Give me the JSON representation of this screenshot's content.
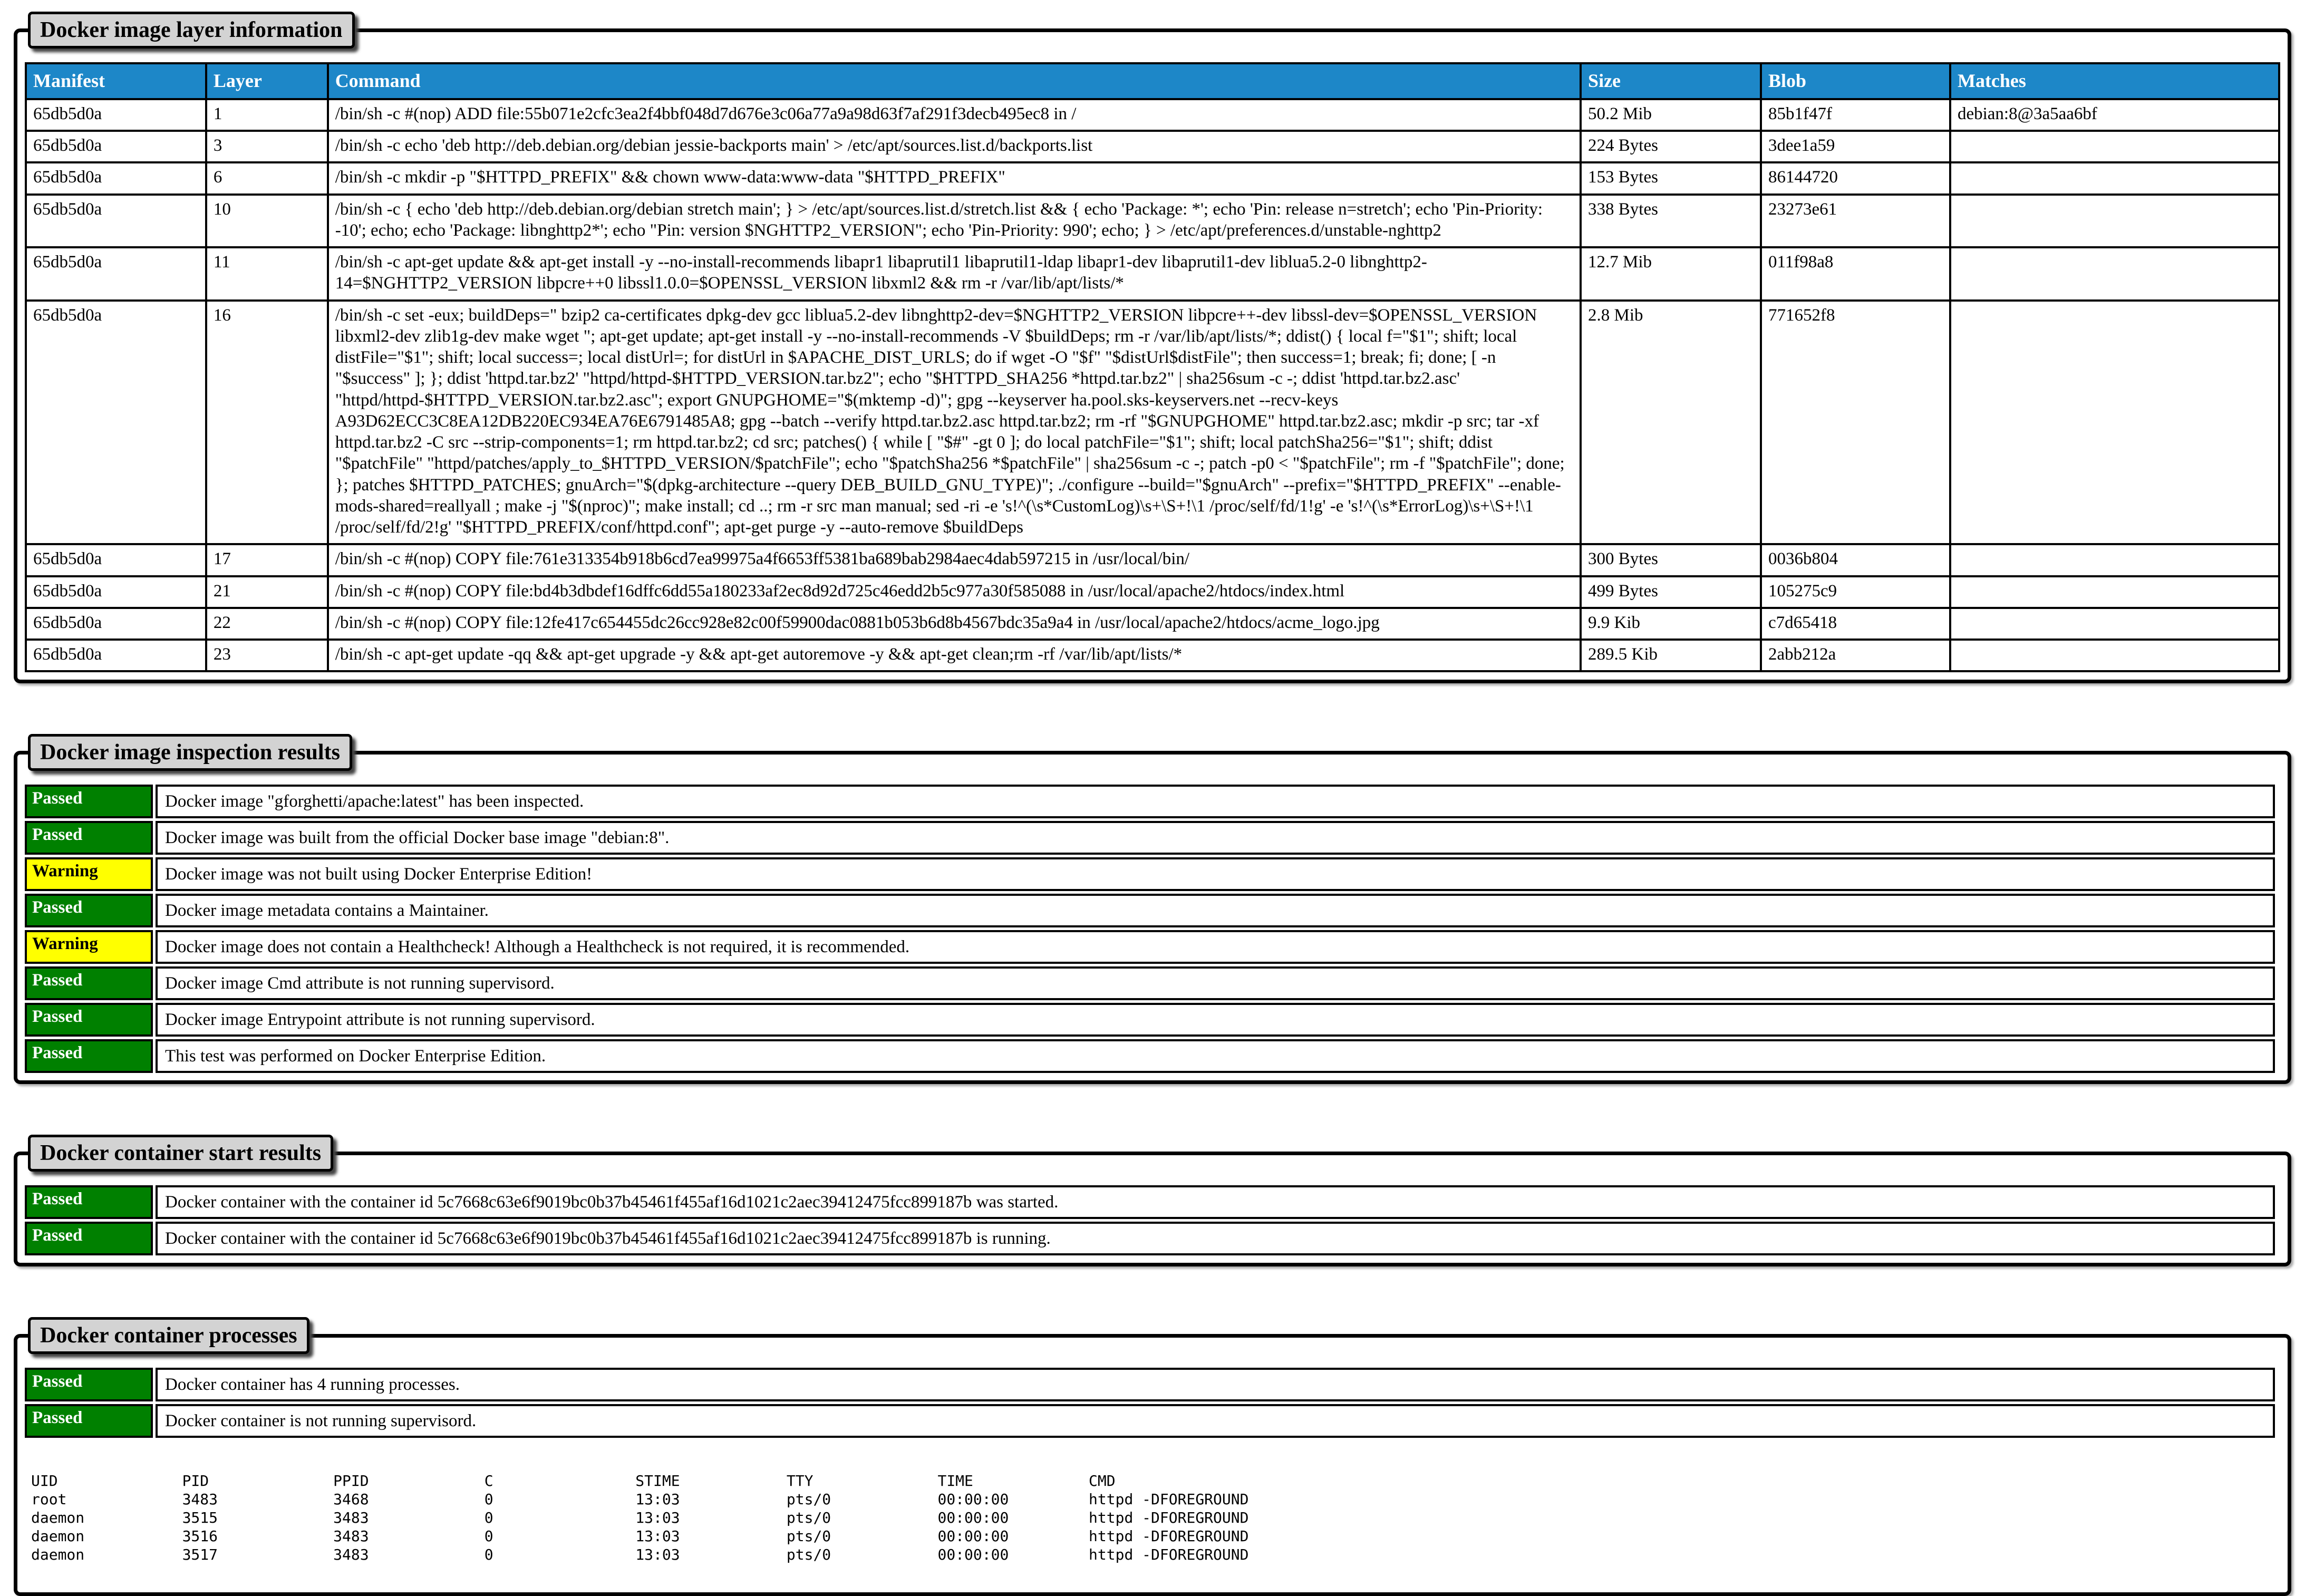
{
  "colors": {
    "header_bg": "#1d87c8",
    "passed_bg": "#008000",
    "warning_bg": "#ffff00",
    "legend_bg": "#d3d3d3"
  },
  "layer_section": {
    "legend": "Docker image layer information",
    "columns": [
      "Manifest",
      "Layer",
      "Command",
      "Size",
      "Blob",
      "Matches"
    ],
    "rows": [
      [
        "65db5d0a",
        "1",
        "/bin/sh -c #(nop) ADD file:55b071e2cfc3ea2f4bbf048d7d676e3c06a77a9a98d63f7af291f3decb495ec8 in /",
        "50.2 Mib",
        "85b1f47f",
        "debian:8@3a5aa6bf"
      ],
      [
        "65db5d0a",
        "3",
        "/bin/sh -c echo 'deb http://deb.debian.org/debian jessie-backports main' > /etc/apt/sources.list.d/backports.list",
        "224 Bytes",
        "3dee1a59",
        ""
      ],
      [
        "65db5d0a",
        "6",
        "/bin/sh -c mkdir -p \"$HTTPD_PREFIX\" && chown www-data:www-data \"$HTTPD_PREFIX\"",
        "153 Bytes",
        "86144720",
        ""
      ],
      [
        "65db5d0a",
        "10",
        "/bin/sh -c { echo 'deb http://deb.debian.org/debian stretch main'; } > /etc/apt/sources.list.d/stretch.list && { echo 'Package: *'; echo 'Pin: release n=stretch'; echo 'Pin-Priority: -10'; echo; echo 'Package: libnghttp2*'; echo \"Pin: version $NGHTTP2_VERSION\"; echo 'Pin-Priority: 990'; echo; } > /etc/apt/preferences.d/unstable-nghttp2",
        "338 Bytes",
        "23273e61",
        ""
      ],
      [
        "65db5d0a",
        "11",
        "/bin/sh -c apt-get update && apt-get install -y --no-install-recommends libapr1 libaprutil1 libaprutil1-ldap libapr1-dev libaprutil1-dev liblua5.2-0 libnghttp2-14=$NGHTTP2_VERSION libpcre++0 libssl1.0.0=$OPENSSL_VERSION libxml2 && rm -r /var/lib/apt/lists/*",
        "12.7 Mib",
        "011f98a8",
        ""
      ],
      [
        "65db5d0a",
        "16",
        "/bin/sh -c set -eux; buildDeps=\" bzip2 ca-certificates dpkg-dev gcc liblua5.2-dev libnghttp2-dev=$NGHTTP2_VERSION libpcre++-dev libssl-dev=$OPENSSL_VERSION libxml2-dev zlib1g-dev make wget \"; apt-get update; apt-get install -y --no-install-recommends -V $buildDeps; rm -r /var/lib/apt/lists/*; ddist() { local f=\"$1\"; shift; local distFile=\"$1\"; shift; local success=; local distUrl=; for distUrl in $APACHE_DIST_URLS; do if wget -O \"$f\" \"$distUrl$distFile\"; then success=1; break; fi; done; [ -n \"$success\" ]; }; ddist 'httpd.tar.bz2' \"httpd/httpd-$HTTPD_VERSION.tar.bz2\"; echo \"$HTTPD_SHA256 *httpd.tar.bz2\" | sha256sum -c -; ddist 'httpd.tar.bz2.asc' \"httpd/httpd-$HTTPD_VERSION.tar.bz2.asc\"; export GNUPGHOME=\"$(mktemp -d)\"; gpg --keyserver ha.pool.sks-keyservers.net --recv-keys A93D62ECC3C8EA12DB220EC934EA76E6791485A8; gpg --batch --verify httpd.tar.bz2.asc httpd.tar.bz2; rm -rf \"$GNUPGHOME\" httpd.tar.bz2.asc; mkdir -p src; tar -xf httpd.tar.bz2 -C src --strip-components=1; rm httpd.tar.bz2; cd src; patches() { while [ \"$#\" -gt 0 ]; do local patchFile=\"$1\"; shift; local patchSha256=\"$1\"; shift; ddist \"$patchFile\" \"httpd/patches/apply_to_$HTTPD_VERSION/$patchFile\"; echo \"$patchSha256 *$patchFile\" | sha256sum -c -; patch -p0 < \"$patchFile\"; rm -f \"$patchFile\"; done; }; patches $HTTPD_PATCHES; gnuArch=\"$(dpkg-architecture --query DEB_BUILD_GNU_TYPE)\"; ./configure --build=\"$gnuArch\" --prefix=\"$HTTPD_PREFIX\" --enable-mods-shared=reallyall ; make -j \"$(nproc)\"; make install; cd ..; rm -r src man manual; sed -ri -e 's!^(\\s*CustomLog)\\s+\\S+!\\1 /proc/self/fd/1!g' -e 's!^(\\s*ErrorLog)\\s+\\S+!\\1 /proc/self/fd/2!g' \"$HTTPD_PREFIX/conf/httpd.conf\"; apt-get purge -y --auto-remove $buildDeps",
        "2.8 Mib",
        "771652f8",
        ""
      ],
      [
        "65db5d0a",
        "17",
        "/bin/sh -c #(nop) COPY file:761e313354b918b6cd7ea99975a4f6653ff5381ba689bab2984aec4dab597215 in /usr/local/bin/",
        "300 Bytes",
        "0036b804",
        ""
      ],
      [
        "65db5d0a",
        "21",
        "/bin/sh -c #(nop) COPY file:bd4b3dbdef16dffc6dd55a180233af2ec8d92d725c46edd2b5c977a30f585088 in /usr/local/apache2/htdocs/index.html",
        "499 Bytes",
        "105275c9",
        ""
      ],
      [
        "65db5d0a",
        "22",
        "/bin/sh -c #(nop) COPY file:12fe417c654455dc26cc928e82c00f59900dac0881b053b6d8b4567bdc35a9a4 in /usr/local/apache2/htdocs/acme_logo.jpg",
        "9.9 Kib",
        "c7d65418",
        ""
      ],
      [
        "65db5d0a",
        "23",
        "/bin/sh -c apt-get update -qq && apt-get upgrade -y && apt-get autoremove -y && apt-get clean;rm -rf /var/lib/apt/lists/*",
        "289.5 Kib",
        "2abb212a",
        ""
      ]
    ]
  },
  "inspection_section": {
    "legend": "Docker image inspection results",
    "rows": [
      {
        "status": "Passed",
        "message": "Docker image \"gforghetti/apache:latest\" has been inspected."
      },
      {
        "status": "Passed",
        "message": "Docker image was built from the official Docker base image \"debian:8\"."
      },
      {
        "status": "Warning",
        "message": "Docker image was not built using Docker Enterprise Edition!"
      },
      {
        "status": "Passed",
        "message": "Docker image metadata contains a Maintainer."
      },
      {
        "status": "Warning",
        "message": "Docker image does not contain a Healthcheck! Although a Healthcheck is not required, it is recommended."
      },
      {
        "status": "Passed",
        "message": "Docker image Cmd attribute is not running supervisord."
      },
      {
        "status": "Passed",
        "message": "Docker image Entrypoint attribute is not running supervisord."
      },
      {
        "status": "Passed",
        "message": "This test was performed on Docker Enterprise Edition."
      }
    ]
  },
  "start_section": {
    "legend": "Docker container start results",
    "rows": [
      {
        "status": "Passed",
        "message": "Docker container with the container id 5c7668c63e6f9019bc0b37b45461f455af16d1021c2aec39412475fcc899187b was started."
      },
      {
        "status": "Passed",
        "message": "Docker container with the container id 5c7668c63e6f9019bc0b37b45461f455af16d1021c2aec39412475fcc899187b is running."
      }
    ]
  },
  "processes_section": {
    "legend": "Docker container processes",
    "rows": [
      {
        "status": "Passed",
        "message": "Docker container has 4 running processes."
      },
      {
        "status": "Passed",
        "message": "Docker container is not running supervisord."
      }
    ],
    "process_table": {
      "headers": [
        "UID",
        "PID",
        "PPID",
        "C",
        "STIME",
        "TTY",
        "TIME",
        "CMD"
      ],
      "rows": [
        [
          "root",
          "3483",
          "3468",
          "0",
          "13:03",
          "pts/0",
          "00:00:00",
          "httpd -DFOREGROUND"
        ],
        [
          "daemon",
          "3515",
          "3483",
          "0",
          "13:03",
          "pts/0",
          "00:00:00",
          "httpd -DFOREGROUND"
        ],
        [
          "daemon",
          "3516",
          "3483",
          "0",
          "13:03",
          "pts/0",
          "00:00:00",
          "httpd -DFOREGROUND"
        ],
        [
          "daemon",
          "3517",
          "3483",
          "0",
          "13:03",
          "pts/0",
          "00:00:00",
          "httpd -DFOREGROUND"
        ]
      ]
    }
  }
}
